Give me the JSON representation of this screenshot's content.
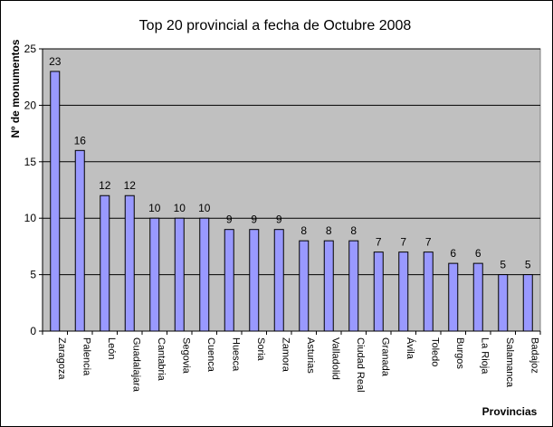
{
  "chart_data": {
    "type": "bar",
    "title": "Top 20 provincial a fecha de Octubre 2008",
    "xlabel": "Provincias",
    "ylabel": "Nº de monumentos",
    "categories": [
      "Zaragoza",
      "Palencia",
      "León",
      "Guadalajara",
      "Cantabria",
      "Segovia",
      "Cuenca",
      "Huesca",
      "Soria",
      "Zamora",
      "Asturias",
      "Valladolid",
      "Ciudad Real",
      "Granada",
      "Ávila",
      "Toledo",
      "Burgos",
      "La Rioja",
      "Salamanca",
      "Badajoz"
    ],
    "values": [
      23,
      16,
      12,
      12,
      10,
      10,
      10,
      9,
      9,
      9,
      8,
      8,
      8,
      7,
      7,
      7,
      6,
      6,
      5,
      5
    ],
    "ylim": [
      0,
      25
    ],
    "yticks": [
      0,
      5,
      10,
      15,
      20,
      25
    ],
    "grid": true,
    "data_labels": true,
    "colors": {
      "plot_background": "#c0c0c0",
      "bar_fill": "#9999ff",
      "bar_stroke": "#000000",
      "gridline": "#000000"
    }
  }
}
